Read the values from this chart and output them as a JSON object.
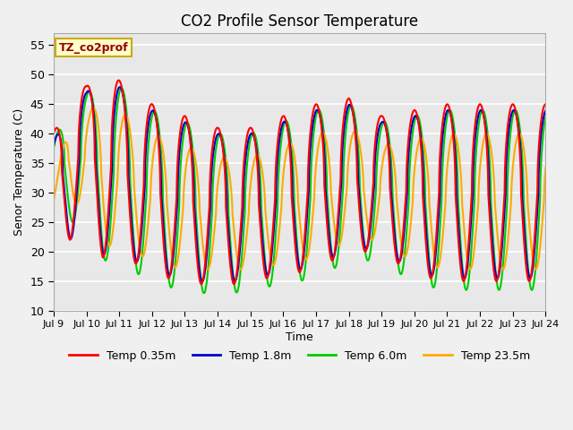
{
  "title": "CO2 Profile Sensor Temperature",
  "xlabel": "Time",
  "ylabel": "Senor Temperature (C)",
  "ylim": [
    10,
    57
  ],
  "yticks": [
    10,
    15,
    20,
    25,
    30,
    35,
    40,
    45,
    50,
    55
  ],
  "xlim_start": 9,
  "xlim_end": 24,
  "xtick_labels": [
    "Jul 9",
    "Jul 10",
    "Jul 11",
    "Jul 12",
    "Jul 13",
    "Jul 14",
    "Jul 15",
    "Jul 16",
    "Jul 17",
    "Jul 18",
    "Jul 19",
    "Jul 20",
    "Jul 21",
    "Jul 22",
    "Jul 23",
    "Jul 24"
  ],
  "series_colors": [
    "#ff0000",
    "#0000cc",
    "#00cc00",
    "#ffaa00"
  ],
  "series_labels": [
    "Temp 0.35m",
    "Temp 1.8m",
    "Temp 6.0m",
    "Temp 23.5m"
  ],
  "legend_text": "TZ_co2prof",
  "legend_box_color": "#ffffcc",
  "legend_box_edge": "#ccaa00",
  "fig_bg_color": "#f0f0f0",
  "plot_bg_color": "#e8e8e8",
  "grid_color": "#ffffff",
  "line_width": 1.5,
  "figsize": [
    6.4,
    4.8
  ],
  "dpi": 100
}
